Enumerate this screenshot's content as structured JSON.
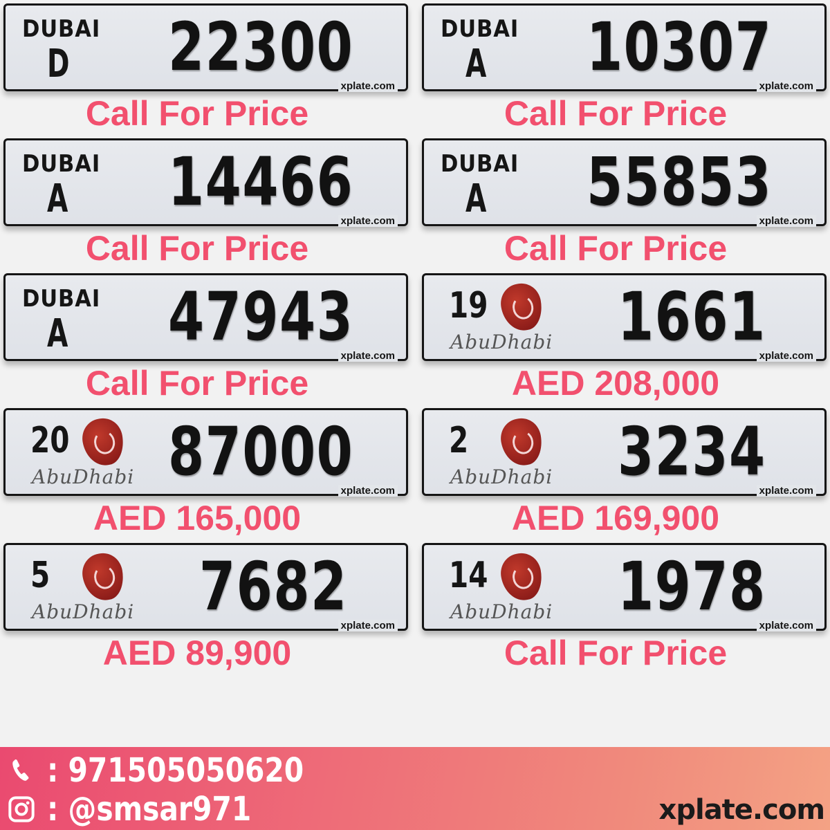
{
  "plates": [
    {
      "emirate": "Dubai",
      "logo_text": "DUBAI",
      "code": "D",
      "number": "22300",
      "price": "Call For Price",
      "watermark": "xplate.com"
    },
    {
      "emirate": "Dubai",
      "logo_text": "DUBAI",
      "code": "A",
      "number": "10307",
      "price": "Call For Price",
      "watermark": "xplate.com"
    },
    {
      "emirate": "Dubai",
      "logo_text": "DUBAI",
      "code": "A",
      "number": "14466",
      "price": "Call For Price",
      "watermark": "xplate.com"
    },
    {
      "emirate": "Dubai",
      "logo_text": "DUBAI",
      "code": "A",
      "number": "55853",
      "price": "Call For Price",
      "watermark": "xplate.com"
    },
    {
      "emirate": "Dubai",
      "logo_text": "DUBAI",
      "code": "A",
      "number": "47943",
      "price": "Call For Price",
      "watermark": "xplate.com"
    },
    {
      "emirate": "Abu Dhabi",
      "logo_text": "AbuDhabi",
      "code": "19",
      "number": "1661",
      "price": "AED 208,000",
      "watermark": "xplate.com"
    },
    {
      "emirate": "Abu Dhabi",
      "logo_text": "AbuDhabi",
      "code": "20",
      "number": "87000",
      "price": "AED 165,000",
      "watermark": "xplate.com"
    },
    {
      "emirate": "Abu Dhabi",
      "logo_text": "AbuDhabi",
      "code": "2",
      "number": "3234",
      "price": "AED 169,900",
      "watermark": "xplate.com"
    },
    {
      "emirate": "Abu Dhabi",
      "logo_text": "AbuDhabi",
      "code": "5",
      "number": "7682",
      "price": "AED 89,900",
      "watermark": "xplate.com"
    },
    {
      "emirate": "Abu Dhabi",
      "logo_text": "AbuDhabi",
      "code": "14",
      "number": "1978",
      "price": "Call For Price",
      "watermark": "xplate.com"
    }
  ],
  "footer": {
    "phone_icon": "phone-icon",
    "phone": ": 971505050620",
    "instagram_icon": "instagram-icon",
    "instagram": ": @smsar971",
    "site": "xplate.com"
  },
  "colors": {
    "price": "#f2506e",
    "footer_start": "#ea4a70",
    "footer_end": "#f4a284"
  }
}
